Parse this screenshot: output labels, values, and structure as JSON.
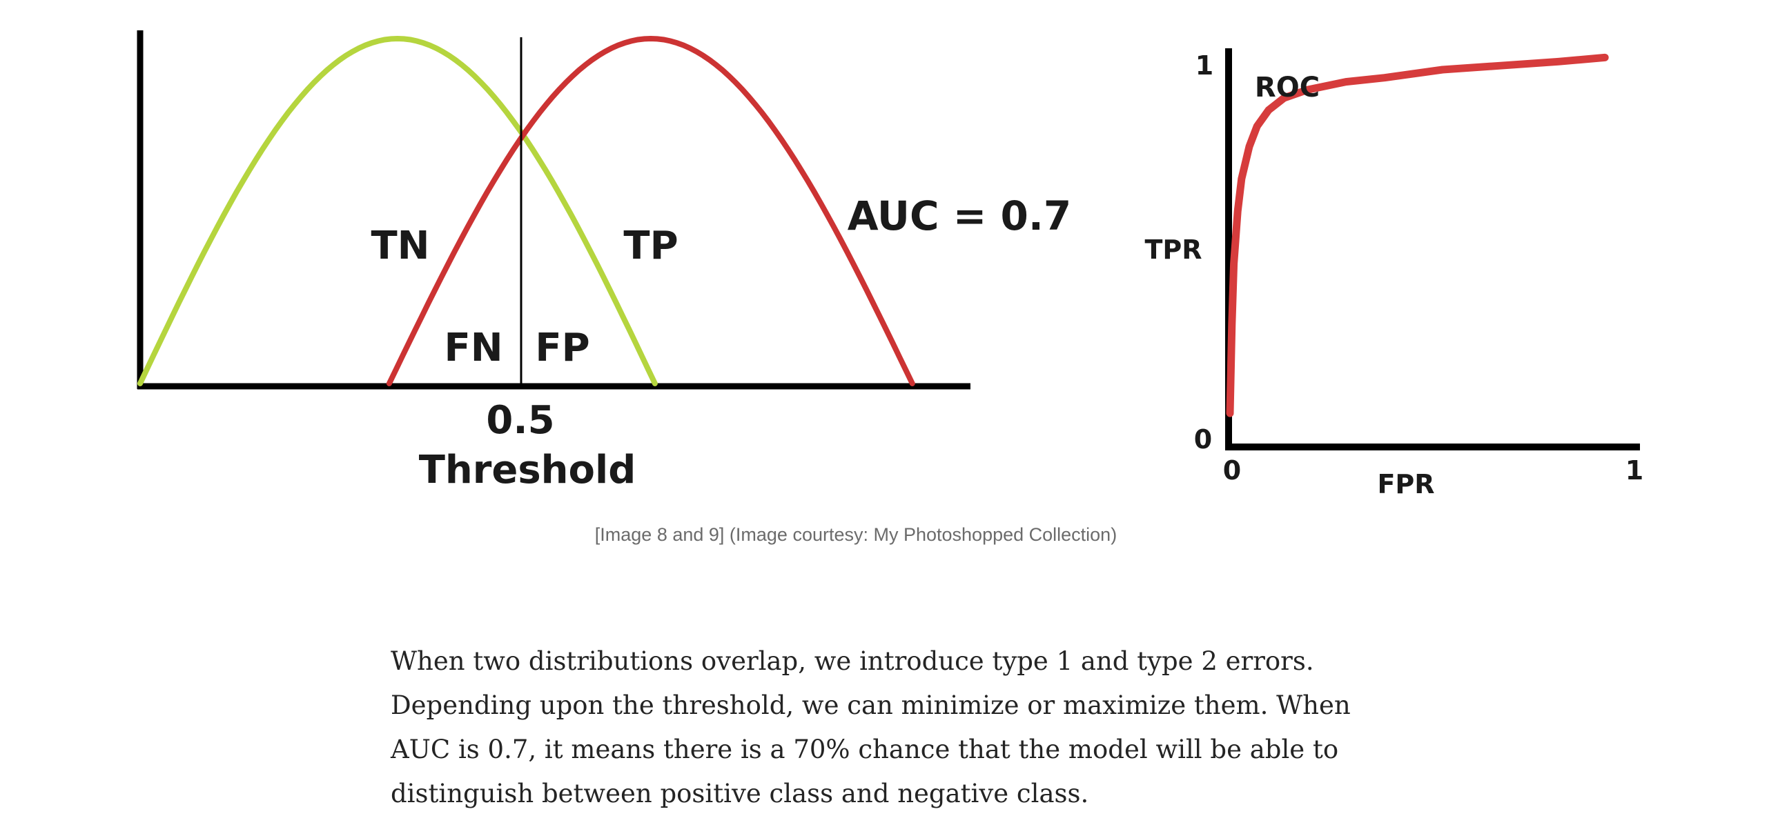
{
  "chart_data": [
    {
      "type": "line",
      "xlabel": "Threshold",
      "threshold_value": "0.5",
      "series": [
        {
          "color": "#b5d53e",
          "shape": "bell",
          "x_range": [
            0.0,
            0.62
          ]
        },
        {
          "color": "#cc3333",
          "shape": "bell",
          "x_range": [
            0.3,
            0.93
          ]
        }
      ],
      "threshold": 0.46,
      "annotations": [
        "TN",
        "TP",
        "FN",
        "FP"
      ],
      "note": "AUC = 0.7"
    },
    {
      "type": "line",
      "xlabel": "FPR",
      "ylabel": "TPR",
      "xlim": [
        0,
        1
      ],
      "ylim": [
        0,
        1
      ],
      "x_ticks": [
        "0",
        "1"
      ],
      "y_ticks": [
        "0",
        "1"
      ],
      "series": [
        {
          "label": "ROC",
          "color": "#d63c3c",
          "x": [
            0,
            0.005,
            0.01,
            0.02,
            0.03,
            0.05,
            0.07,
            0.1,
            0.14,
            0.2,
            0.3,
            0.4,
            0.55,
            0.7,
            0.85,
            0.97
          ],
          "y": [
            0.08,
            0.3,
            0.45,
            0.58,
            0.66,
            0.74,
            0.79,
            0.83,
            0.86,
            0.88,
            0.9,
            0.91,
            0.93,
            0.94,
            0.95,
            0.96
          ]
        }
      ]
    }
  ],
  "caption": "[Image 8 and 9] (Image courtesy: My Photoshopped Collection)",
  "paragraph": "When two distributions overlap, we introduce type 1 and type 2 errors. Depending upon the threshold, we can minimize or maximize them. When AUC is 0.7, it means there is a 70% chance that the model will be able to distinguish between positive class and negative class."
}
